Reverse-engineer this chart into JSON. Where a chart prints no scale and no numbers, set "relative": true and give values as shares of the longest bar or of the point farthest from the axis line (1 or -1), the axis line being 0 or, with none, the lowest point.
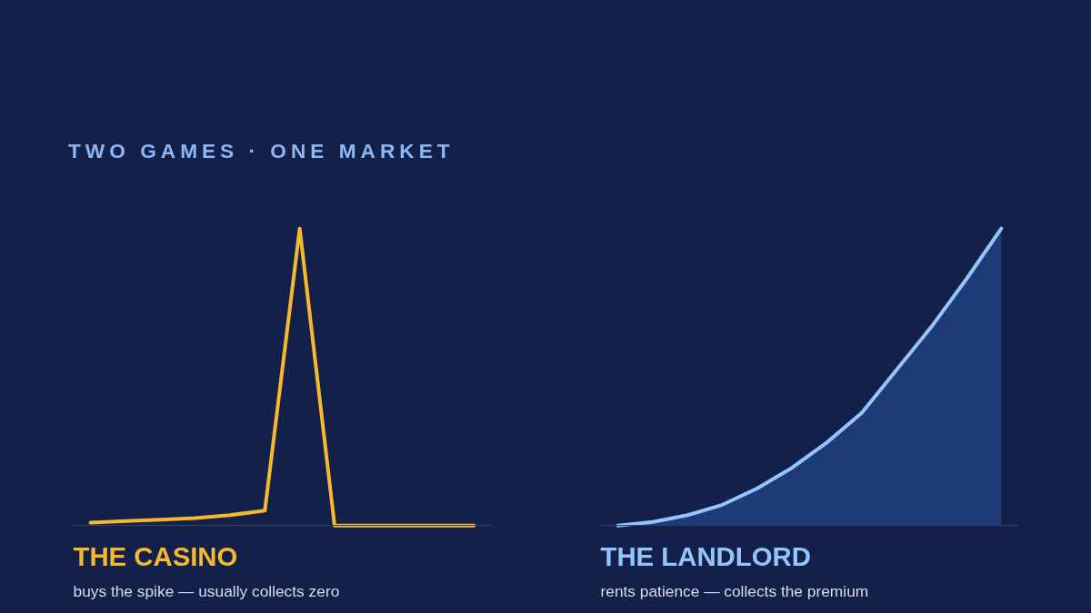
{
  "chart_data": [
    {
      "type": "other",
      "title": "TWO GAMES · ONE MARKET"
    },
    {
      "type": "line",
      "relative": true,
      "title": "THE CASINO",
      "subtitle": "buys the spike — usually collects zero",
      "categories": [
        null,
        null,
        null,
        null,
        null,
        null,
        null,
        null,
        null,
        null,
        null,
        null
      ],
      "series": [
        {
          "color": "#f5b82e",
          "values": [
            0.01,
            0.015,
            0.02,
            0.025,
            0.035,
            0.05,
            1,
            0,
            0,
            0,
            0,
            0
          ]
        }
      ]
    },
    {
      "type": "area",
      "relative": true,
      "title": "THE LANDLORD",
      "subtitle": "rents patience — collects the premium",
      "categories": [
        null,
        null,
        null,
        null,
        null,
        null,
        null,
        null,
        null,
        null,
        null,
        null
      ],
      "series": [
        {
          "color": "#93c5fd",
          "values": [
            0,
            0.012,
            0.035,
            0.07,
            0.125,
            0.195,
            0.28,
            0.38,
            0.525,
            0.67,
            0.83,
            1
          ]
        }
      ]
    }
  ]
}
